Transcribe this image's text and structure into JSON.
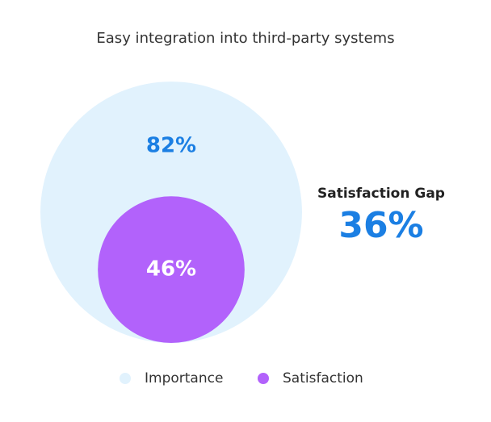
{
  "chart_data": {
    "type": "nested-circle",
    "title": "Easy integration into third-party systems",
    "series": [
      {
        "name": "Importance",
        "color": "#e1f2fd",
        "values": [
          82
        ],
        "value_labels": [
          "82%"
        ]
      },
      {
        "name": "Satisfaction",
        "color": "#b262fb",
        "values": [
          46
        ],
        "value_labels": [
          "46%"
        ]
      }
    ],
    "gap_title": "Satisfaction Gap",
    "gap": 36,
    "gap_label": "36%"
  }
}
